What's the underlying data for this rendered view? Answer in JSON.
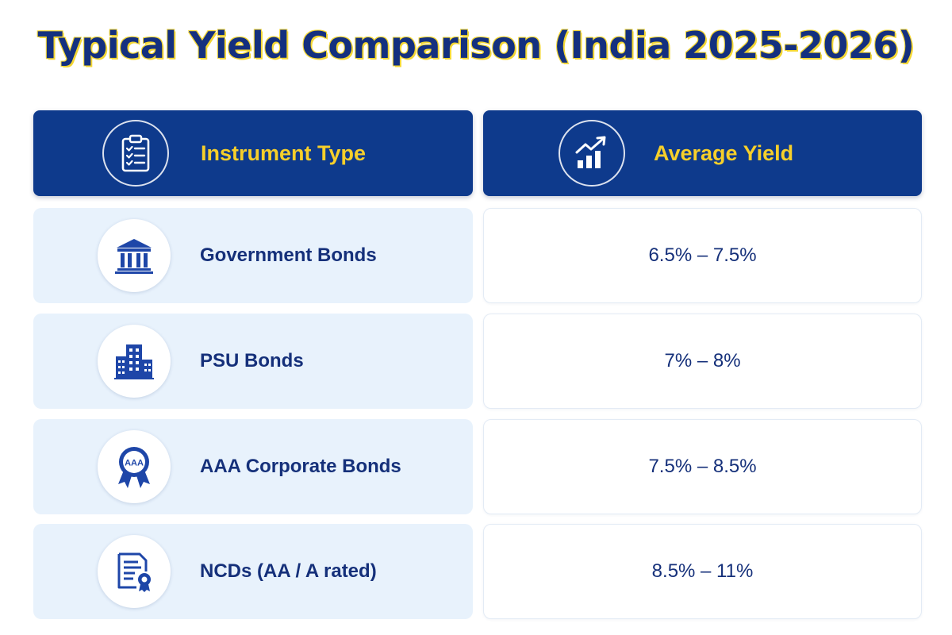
{
  "title": "Typical Yield Comparison (India 2025-2026)",
  "header": {
    "instrument_label": "Instrument Type",
    "instrument_icon": "clipboard-checklist-icon",
    "yield_label": "Average Yield",
    "yield_icon": "growth-chart-icon"
  },
  "rows": [
    {
      "instrument": "Government Bonds",
      "icon": "government-building-icon",
      "yield": "6.5% – 7.5%"
    },
    {
      "instrument": "PSU Bonds",
      "icon": "office-buildings-icon",
      "yield": "7% – 8%"
    },
    {
      "instrument": "AAA Corporate Bonds",
      "icon": "aaa-rating-badge-icon",
      "badge_text": "AAA",
      "yield": "7.5% – 8.5%"
    },
    {
      "instrument": "NCDs (AA / A rated)",
      "icon": "certificate-document-icon",
      "yield": "8.5% – 11%"
    }
  ],
  "colors": {
    "header_bg": "#0e3a8c",
    "header_text": "#f6cf2a",
    "title_text": "#14307f",
    "title_outline": "#f3d633",
    "body_text": "#15307a",
    "row_left_bg": "#e8f2fc"
  }
}
